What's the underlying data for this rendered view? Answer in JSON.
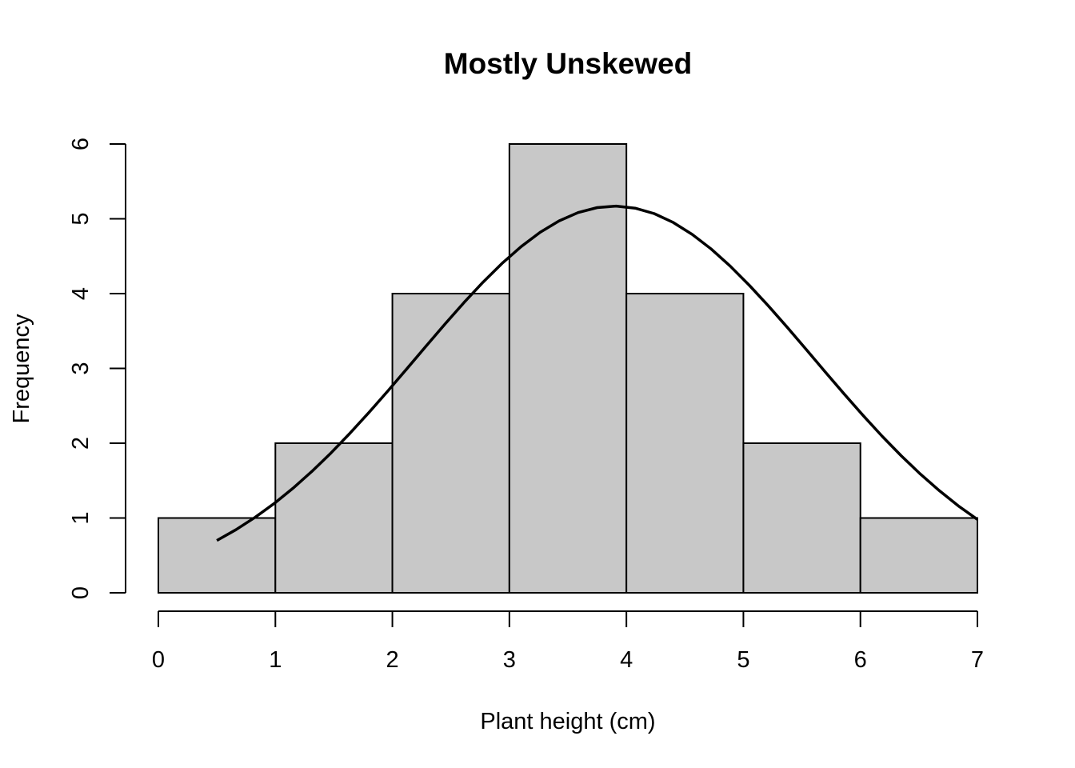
{
  "chart_data": {
    "type": "bar",
    "subtype": "histogram",
    "title": "Mostly Unskewed",
    "xlabel": "Plant height (cm)",
    "ylabel": "Frequency",
    "bins": [
      [
        0,
        1
      ],
      [
        1,
        2
      ],
      [
        2,
        3
      ],
      [
        3,
        4
      ],
      [
        4,
        5
      ],
      [
        5,
        6
      ],
      [
        6,
        7
      ]
    ],
    "values": [
      1,
      2,
      4,
      6,
      4,
      2,
      1
    ],
    "xlim": [
      0,
      7
    ],
    "ylim": [
      0,
      6
    ],
    "x_ticks": [
      0,
      1,
      2,
      3,
      4,
      5,
      6,
      7
    ],
    "y_ticks": [
      0,
      1,
      2,
      3,
      4,
      5,
      6
    ],
    "bar_color": "#c8c8c8",
    "grid": false,
    "legend": "none",
    "overlay_curve": {
      "type": "normal-density",
      "mean": 3.9,
      "sd": 1.7,
      "peak": 5.17,
      "x_range": [
        0.5,
        7.0
      ]
    }
  }
}
